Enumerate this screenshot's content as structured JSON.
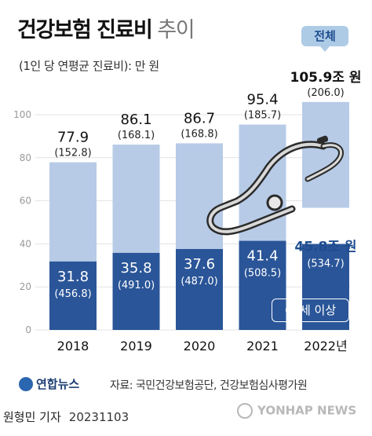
{
  "title": {
    "bold": "건강보험 진료비",
    "light": "추이"
  },
  "subtitle": "(1인 당 연평균 진료비): 만 원",
  "legend_tag": "전체",
  "label_65": "65세 이상",
  "footer": {
    "logo": "연합뉴스",
    "source": "자료: 국민건강보험공단, 건강보험심사평가원",
    "reporter": "원형민 기자",
    "date": "20231103",
    "watermark": "YONHAP NEWS"
  },
  "colors": {
    "total_bar": "#b7cbe7",
    "senior_bar": "#2a5598",
    "senior_highlight": "#1e4d8f"
  },
  "icon": "stethoscope-icon",
  "chart_data": {
    "type": "bar",
    "categories": [
      "2018",
      "2019",
      "2020",
      "2021",
      "2022년"
    ],
    "ylim": [
      0,
      100
    ],
    "yticks": [
      0,
      20,
      40,
      60,
      80,
      100
    ],
    "series": [
      {
        "name": "전체",
        "values": [
          77.9,
          86.1,
          86.7,
          95.4,
          105.9
        ],
        "labels": [
          "77.9",
          "86.1",
          "86.7",
          "95.4",
          "105.9조 원"
        ],
        "sublabels": [
          "(152.8)",
          "(168.1)",
          "(168.8)",
          "(185.7)",
          "(206.0)"
        ]
      },
      {
        "name": "65세 이상",
        "values": [
          31.8,
          35.8,
          37.6,
          41.4,
          45.8
        ],
        "labels": [
          "31.8",
          "35.8",
          "37.6",
          "41.4",
          "45.8조 원"
        ],
        "sublabels": [
          "(456.8)",
          "(491.0)",
          "(487.0)",
          "(508.5)",
          "(534.7)"
        ]
      }
    ]
  }
}
